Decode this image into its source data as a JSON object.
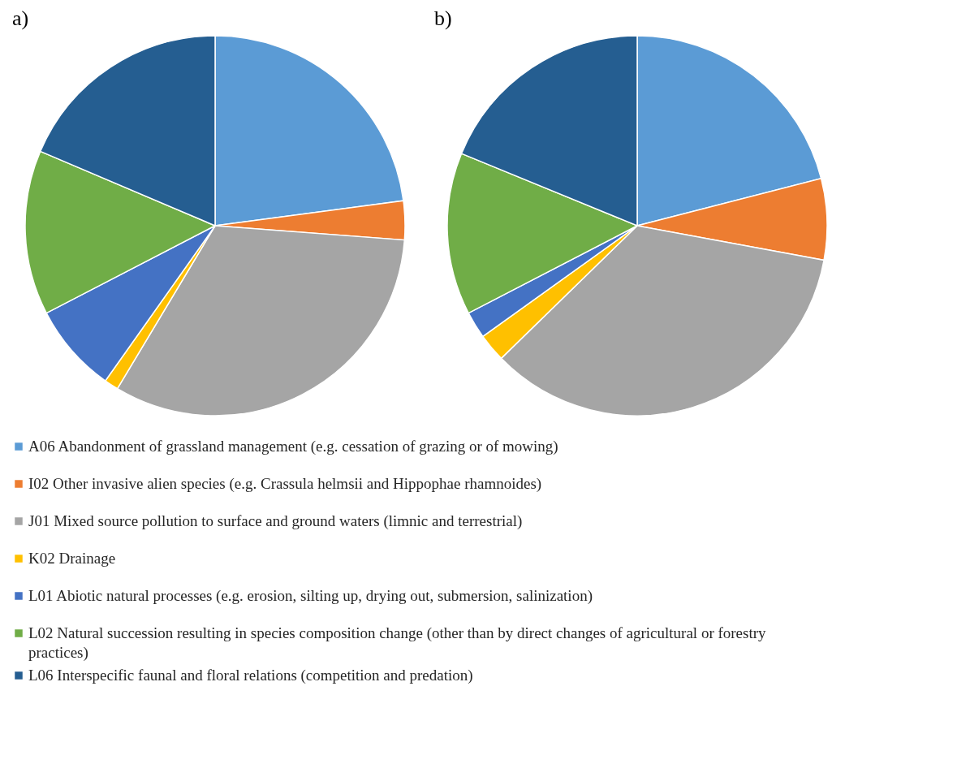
{
  "chart_data": [
    {
      "type": "pie",
      "title": "a)",
      "categories": [
        "A06 Abandonment of grassland management (e.g. cessation of grazing or of mowing)",
        "I02 Other invasive alien species (e.g. Crassula helmsii and Hippophae rhamnoides)",
        "J01 Mixed source pollution to surface and ground waters (limnic and terrestrial)",
        "K02 Drainage",
        "L01 Abiotic natural processes (e.g. erosion, silting up, drying out, submersion, salinization)",
        "L02 Natural succession resulting in species composition change (other than by direct changes of agricultural or forestry practices)",
        "L06 Interspecific faunal and floral relations (competition and predation)"
      ],
      "values": [
        22.9,
        3.3,
        32.4,
        1.2,
        7.6,
        14.0,
        18.6
      ],
      "colors": [
        "#5b9bd5",
        "#ed7d31",
        "#a5a5a5",
        "#ffc000",
        "#4472c4",
        "#70ad47",
        "#255e91"
      ],
      "legend": "bottom"
    },
    {
      "type": "pie",
      "title": "b)",
      "categories": [
        null,
        null,
        null,
        null,
        null,
        null,
        null
      ],
      "values": [
        21.0,
        6.9,
        34.8,
        2.4,
        2.3,
        13.8,
        18.8
      ],
      "colors": [
        "#5b9bd5",
        "#ed7d31",
        "#a5a5a5",
        "#ffc000",
        "#4472c4",
        "#70ad47",
        "#255e91"
      ]
    }
  ]
}
